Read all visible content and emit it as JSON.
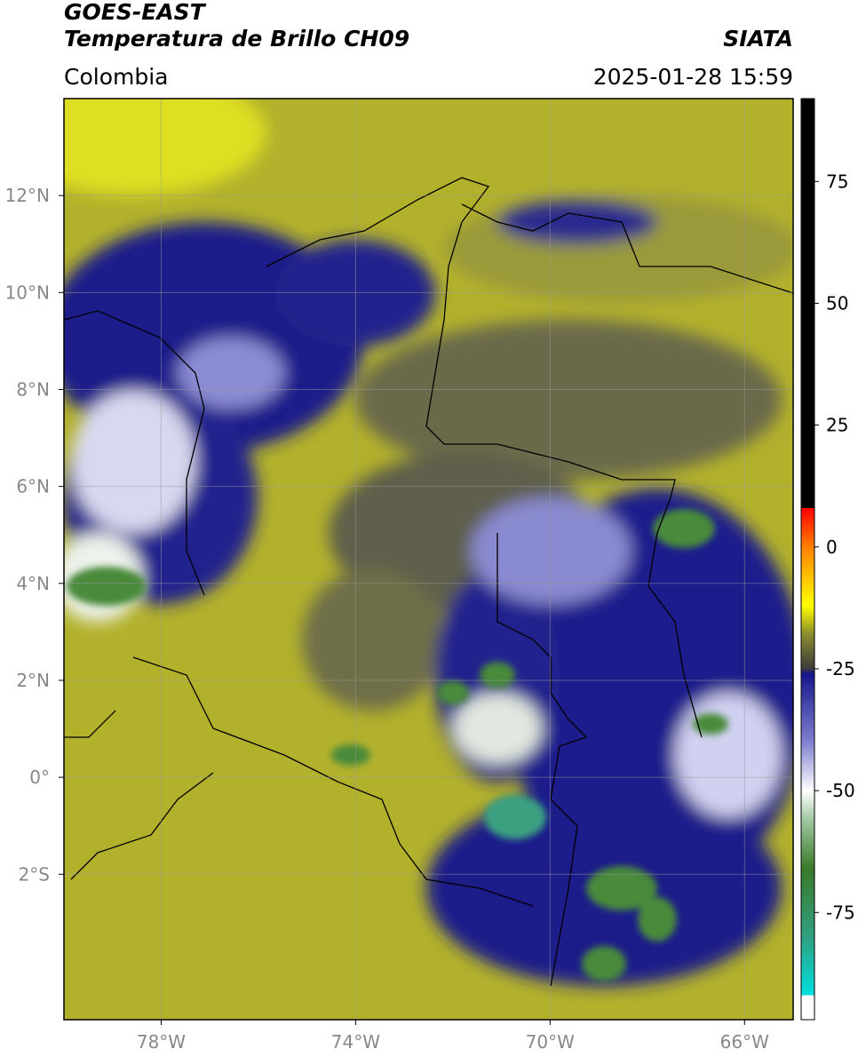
{
  "header": {
    "title": "GOES-EAST",
    "subtitle": "Temperatura de Brillo CH09",
    "source": "SIATA",
    "region": "Colombia",
    "timestamp": "2025-01-28 15:59"
  },
  "map": {
    "lonlim": [
      -80,
      -65
    ],
    "latlim": [
      -5,
      14
    ],
    "grid": true,
    "lon_ticks": [
      {
        "value": -78,
        "label": "78°W"
      },
      {
        "value": -74,
        "label": "74°W"
      },
      {
        "value": -70,
        "label": "70°W"
      },
      {
        "value": -66,
        "label": "66°W"
      }
    ],
    "lat_ticks": [
      {
        "value": 12,
        "label": "12°N"
      },
      {
        "value": 10,
        "label": "10°N"
      },
      {
        "value": 8,
        "label": "8°N"
      },
      {
        "value": 6,
        "label": "6°N"
      },
      {
        "value": 4,
        "label": "4°N"
      },
      {
        "value": 2,
        "label": "2°N"
      },
      {
        "value": 0,
        "label": "0°"
      },
      {
        "value": -2,
        "label": "2°S"
      }
    ]
  },
  "colorbar": {
    "lim": [
      -97,
      92
    ],
    "ticks": [
      75,
      50,
      25,
      0,
      -25,
      -50,
      -75
    ],
    "stops": [
      {
        "value": 92,
        "color": "#000000"
      },
      {
        "value": 8,
        "color": "#000000"
      },
      {
        "value": 8,
        "color": "#ff0000"
      },
      {
        "value": 0,
        "color": "#ff8000"
      },
      {
        "value": -12,
        "color": "#ffff00"
      },
      {
        "value": -18,
        "color": "#8a8a30"
      },
      {
        "value": -25,
        "color": "#3c3c3c"
      },
      {
        "value": -26,
        "color": "#16168c"
      },
      {
        "value": -40,
        "color": "#8080d0"
      },
      {
        "value": -50,
        "color": "#ffffff"
      },
      {
        "value": -56,
        "color": "#a0c8a0"
      },
      {
        "value": -66,
        "color": "#3a7a2a"
      },
      {
        "value": -80,
        "color": "#30a080"
      },
      {
        "value": -92,
        "color": "#00e0e0"
      },
      {
        "value": -92,
        "color": "#ffffff"
      },
      {
        "value": -97,
        "color": "#ffffff"
      }
    ]
  }
}
